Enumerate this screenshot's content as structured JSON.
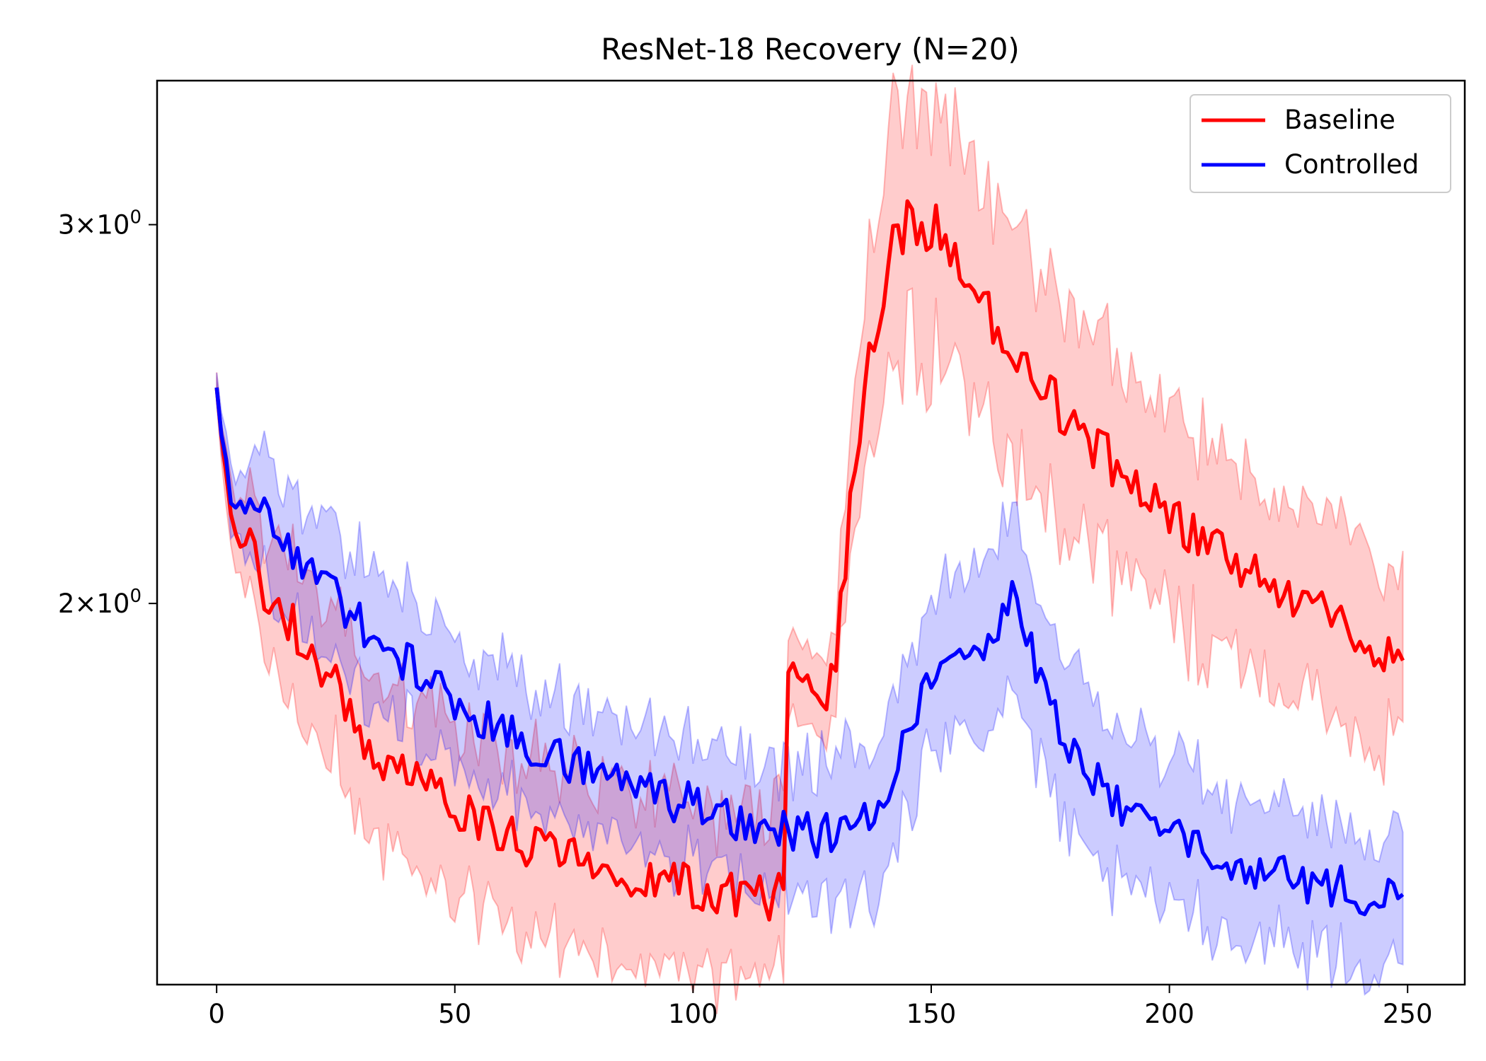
{
  "chart_data": {
    "type": "line",
    "title": "ResNet-18 Recovery (N=20)",
    "xlabel": "",
    "ylabel": "",
    "yscale": "log",
    "xlim": [
      -12.5,
      262
    ],
    "ylim": [
      1.33,
      3.5
    ],
    "x_ticks": [
      0,
      50,
      100,
      150,
      200,
      250
    ],
    "x_tick_labels": [
      "0",
      "50",
      "100",
      "150",
      "200",
      "250"
    ],
    "y_ticks": [
      {
        "value": 2,
        "mantissa": "2",
        "base": "10",
        "exponent": "0"
      },
      {
        "value": 3,
        "mantissa": "3",
        "base": "10",
        "exponent": "0"
      }
    ],
    "legend_position": "top-right",
    "legend": [
      "Baseline",
      "Controlled"
    ],
    "series": [
      {
        "name": "Baseline",
        "color": "#ff0000",
        "band_color": "#ff0000",
        "keypoints": [
          [
            0,
            2.52
          ],
          [
            2,
            2.26
          ],
          [
            5,
            2.16
          ],
          [
            10,
            2.04
          ],
          [
            15,
            1.96
          ],
          [
            20,
            1.89
          ],
          [
            25,
            1.83
          ],
          [
            30,
            1.75
          ],
          [
            35,
            1.7
          ],
          [
            40,
            1.66
          ],
          [
            45,
            1.63
          ],
          [
            50,
            1.6
          ],
          [
            55,
            1.58
          ],
          [
            60,
            1.56
          ],
          [
            65,
            1.545
          ],
          [
            70,
            1.53
          ],
          [
            75,
            1.52
          ],
          [
            80,
            1.51
          ],
          [
            85,
            1.5
          ],
          [
            90,
            1.49
          ],
          [
            95,
            1.485
          ],
          [
            100,
            1.475
          ],
          [
            105,
            1.47
          ],
          [
            110,
            1.465
          ],
          [
            115,
            1.46
          ],
          [
            119,
            1.465
          ],
          [
            120,
            1.83
          ],
          [
            124,
            1.83
          ],
          [
            128,
            1.8
          ],
          [
            130,
            1.85
          ],
          [
            133,
            2.22
          ],
          [
            136,
            2.5
          ],
          [
            139,
            2.74
          ],
          [
            142,
            2.92
          ],
          [
            145,
            3.02
          ],
          [
            148,
            3.0
          ],
          [
            152,
            2.99
          ],
          [
            155,
            2.92
          ],
          [
            160,
            2.78
          ],
          [
            165,
            2.66
          ],
          [
            170,
            2.58
          ],
          [
            175,
            2.5
          ],
          [
            180,
            2.42
          ],
          [
            185,
            2.36
          ],
          [
            190,
            2.3
          ],
          [
            195,
            2.25
          ],
          [
            200,
            2.2
          ],
          [
            205,
            2.16
          ],
          [
            210,
            2.12
          ],
          [
            215,
            2.08
          ],
          [
            220,
            2.05
          ],
          [
            225,
            2.02
          ],
          [
            230,
            1.99
          ],
          [
            235,
            1.96
          ],
          [
            240,
            1.93
          ],
          [
            245,
            1.91
          ],
          [
            249,
            1.88
          ]
        ],
        "band_keypoints": [
          [
            0,
            0.015
          ],
          [
            10,
            0.065
          ],
          [
            30,
            0.085
          ],
          [
            60,
            0.09
          ],
          [
            100,
            0.09
          ],
          [
            119,
            0.09
          ],
          [
            120,
            0.04
          ],
          [
            130,
            0.05
          ],
          [
            140,
            0.12
          ],
          [
            150,
            0.13
          ],
          [
            160,
            0.12
          ],
          [
            200,
            0.11
          ],
          [
            249,
            0.095
          ]
        ],
        "noise": 0.012,
        "seed": 7
      },
      {
        "name": "Controlled",
        "color": "#0000ff",
        "band_color": "#0000ff",
        "keypoints": [
          [
            0,
            2.52
          ],
          [
            2,
            2.29
          ],
          [
            5,
            2.26
          ],
          [
            10,
            2.2
          ],
          [
            15,
            2.13
          ],
          [
            20,
            2.07
          ],
          [
            25,
            2.01
          ],
          [
            30,
            1.96
          ],
          [
            35,
            1.92
          ],
          [
            40,
            1.88
          ],
          [
            45,
            1.84
          ],
          [
            50,
            1.8
          ],
          [
            55,
            1.77
          ],
          [
            60,
            1.74
          ],
          [
            65,
            1.72
          ],
          [
            70,
            1.7
          ],
          [
            75,
            1.685
          ],
          [
            80,
            1.67
          ],
          [
            85,
            1.655
          ],
          [
            90,
            1.64
          ],
          [
            95,
            1.625
          ],
          [
            100,
            1.61
          ],
          [
            105,
            1.6
          ],
          [
            110,
            1.585
          ],
          [
            115,
            1.57
          ],
          [
            120,
            1.565
          ],
          [
            125,
            1.56
          ],
          [
            130,
            1.56
          ],
          [
            133,
            1.57
          ],
          [
            136,
            1.58
          ],
          [
            139,
            1.6
          ],
          [
            142,
            1.66
          ],
          [
            145,
            1.74
          ],
          [
            148,
            1.82
          ],
          [
            151,
            1.88
          ],
          [
            155,
            1.9
          ],
          [
            160,
            1.92
          ],
          [
            164,
            1.95
          ],
          [
            167,
            2.0
          ],
          [
            170,
            1.95
          ],
          [
            173,
            1.85
          ],
          [
            176,
            1.76
          ],
          [
            180,
            1.7
          ],
          [
            185,
            1.65
          ],
          [
            190,
            1.61
          ],
          [
            195,
            1.58
          ],
          [
            200,
            1.56
          ],
          [
            205,
            1.54
          ],
          [
            210,
            1.53
          ],
          [
            215,
            1.515
          ],
          [
            220,
            1.505
          ],
          [
            225,
            1.495
          ],
          [
            230,
            1.485
          ],
          [
            235,
            1.475
          ],
          [
            240,
            1.47
          ],
          [
            245,
            1.465
          ],
          [
            249,
            1.48
          ]
        ],
        "band_keypoints": [
          [
            0,
            0.015
          ],
          [
            10,
            0.07
          ],
          [
            50,
            0.07
          ],
          [
            100,
            0.065
          ],
          [
            120,
            0.07
          ],
          [
            140,
            0.085
          ],
          [
            167,
            0.09
          ],
          [
            200,
            0.075
          ],
          [
            249,
            0.07
          ]
        ],
        "noise": 0.011,
        "seed": 13
      }
    ]
  }
}
